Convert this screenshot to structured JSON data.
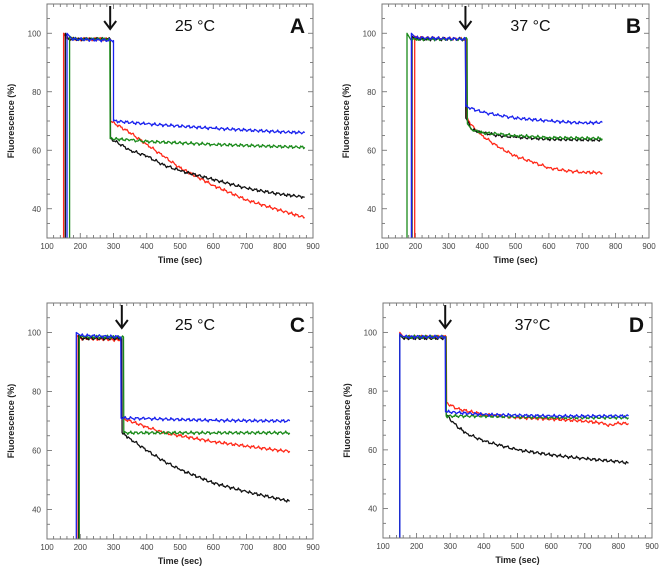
{
  "chart_data": [
    {
      "type": "line",
      "panel": "A",
      "annotation": "25 °C",
      "arrow_at": 290,
      "xlabel": "Time (sec)",
      "ylabel": "Fluorescence (%)",
      "xlim": [
        100,
        900
      ],
      "ylim": [
        30,
        110
      ],
      "xticks": [
        100,
        200,
        300,
        400,
        500,
        600,
        700,
        800,
        900
      ],
      "yticks": [
        40,
        60,
        80,
        100
      ],
      "series": [
        {
          "name": "red",
          "color": "#ff2a1a",
          "points": [
            [
              150,
              30
            ],
            [
              150,
              100
            ],
            [
              160,
              98
            ],
            [
              290,
              98
            ],
            [
              291,
              70
            ],
            [
              350,
              66
            ],
            [
              400,
              62
            ],
            [
              450,
              58
            ],
            [
              500,
              54
            ],
            [
              600,
              48
            ],
            [
              700,
              43
            ],
            [
              800,
              39.5
            ],
            [
              875,
              37
            ]
          ]
        },
        {
          "name": "black",
          "color": "#111111",
          "points": [
            [
              155,
              30
            ],
            [
              155,
              100
            ],
            [
              165,
              98
            ],
            [
              290,
              98
            ],
            [
              291,
              64
            ],
            [
              350,
              60
            ],
            [
              400,
              58
            ],
            [
              450,
              55
            ],
            [
              500,
              53
            ],
            [
              600,
              50
            ],
            [
              700,
              47
            ],
            [
              800,
              45
            ],
            [
              875,
              44
            ]
          ]
        },
        {
          "name": "green",
          "color": "#1a8a1a",
          "points": [
            [
              168,
              30
            ],
            [
              168,
              99
            ],
            [
              180,
              98
            ],
            [
              289,
              98
            ],
            [
              290,
              64
            ],
            [
              350,
              63.5
            ],
            [
              400,
              63
            ],
            [
              600,
              62
            ],
            [
              875,
              61
            ]
          ]
        },
        {
          "name": "blue",
          "color": "#1a22ee",
          "points": [
            [
              160,
              30
            ],
            [
              160,
              100
            ],
            [
              175,
              98
            ],
            [
              300,
              97.5
            ],
            [
              300,
              70
            ],
            [
              400,
              69
            ],
            [
              600,
              67.5
            ],
            [
              800,
              66.3
            ],
            [
              875,
              66
            ]
          ]
        }
      ]
    },
    {
      "type": "line",
      "panel": "B",
      "annotation": "37 °C",
      "arrow_at": 350,
      "xlabel": "Time (sec)",
      "ylabel": "Fluorescence (%)",
      "xlim": [
        100,
        900
      ],
      "ylim": [
        30,
        110
      ],
      "xticks": [
        100,
        200,
        300,
        400,
        500,
        600,
        700,
        800,
        900
      ],
      "yticks": [
        40,
        60,
        80,
        100
      ],
      "series": [
        {
          "name": "red",
          "color": "#ff2a1a",
          "points": [
            [
              198,
              30
            ],
            [
              198,
              99
            ],
            [
              210,
              98.5
            ],
            [
              352,
              98
            ],
            [
              353,
              71
            ],
            [
              380,
              67
            ],
            [
              400,
              65
            ],
            [
              450,
              61
            ],
            [
              500,
              58
            ],
            [
              550,
              56
            ],
            [
              600,
              54
            ],
            [
              650,
              53
            ],
            [
              700,
              52.5
            ],
            [
              760,
              52.3
            ]
          ]
        },
        {
          "name": "black",
          "color": "#111111",
          "points": [
            [
              190,
              30
            ],
            [
              190,
              99
            ],
            [
              200,
              98
            ],
            [
              350,
              98
            ],
            [
              351,
              71
            ],
            [
              370,
              67
            ],
            [
              400,
              66
            ],
            [
              450,
              65
            ],
            [
              500,
              64.5
            ],
            [
              600,
              63.8
            ],
            [
              760,
              63.5
            ]
          ]
        },
        {
          "name": "green",
          "color": "#1a8a1a",
          "points": [
            [
              175,
              30
            ],
            [
              175,
              100
            ],
            [
              185,
              98
            ],
            [
              355,
              98
            ],
            [
              356,
              69
            ],
            [
              370,
              67
            ],
            [
              400,
              66
            ],
            [
              450,
              65.5
            ],
            [
              500,
              65
            ],
            [
              600,
              64.3
            ],
            [
              760,
              64
            ]
          ]
        },
        {
          "name": "blue",
          "color": "#1a22ee",
          "points": [
            [
              188,
              30
            ],
            [
              188,
              100
            ],
            [
              200,
              98.5
            ],
            [
              350,
              98
            ],
            [
              351,
              75
            ],
            [
              400,
              73
            ],
            [
              450,
              72
            ],
            [
              500,
              71
            ],
            [
              600,
              70
            ],
            [
              700,
              69.3
            ],
            [
              760,
              69.5
            ]
          ]
        }
      ]
    },
    {
      "type": "line",
      "panel": "C",
      "annotation": "25 °C",
      "arrow_at": 325,
      "xlabel": "Time (sec)",
      "ylabel": "Fluorescence (%)",
      "xlim": [
        100,
        900
      ],
      "ylim": [
        30,
        110
      ],
      "xticks": [
        100,
        200,
        300,
        400,
        500,
        600,
        700,
        800,
        900
      ],
      "yticks": [
        40,
        60,
        80,
        100
      ],
      "series": [
        {
          "name": "red",
          "color": "#ff2a1a",
          "points": [
            [
              190,
              30
            ],
            [
              190,
              99
            ],
            [
              200,
              98
            ],
            [
              323,
              97.5
            ],
            [
              324,
              71
            ],
            [
              400,
              68
            ],
            [
              450,
              66
            ],
            [
              500,
              65
            ],
            [
              600,
              63
            ],
            [
              700,
              61.5
            ],
            [
              800,
              60
            ],
            [
              830,
              59.8
            ]
          ]
        },
        {
          "name": "black",
          "color": "#111111",
          "points": [
            [
              195,
              30
            ],
            [
              195,
              99
            ],
            [
              205,
              98
            ],
            [
              325,
              98
            ],
            [
              326,
              66
            ],
            [
              350,
              64
            ],
            [
              400,
              60
            ],
            [
              450,
              56.5
            ],
            [
              500,
              53.5
            ],
            [
              600,
              49
            ],
            [
              700,
              46
            ],
            [
              800,
              43.5
            ],
            [
              830,
              42.8
            ]
          ]
        },
        {
          "name": "green",
          "color": "#1a8a1a",
          "points": [
            [
              197,
              30
            ],
            [
              197,
              99
            ],
            [
              210,
              98.5
            ],
            [
              330,
              98.5
            ],
            [
              331,
              66
            ],
            [
              400,
              66
            ],
            [
              600,
              66
            ],
            [
              830,
              66
            ]
          ]
        },
        {
          "name": "blue",
          "color": "#1a22ee",
          "points": [
            [
              188,
              30
            ],
            [
              188,
              100
            ],
            [
              200,
              99
            ],
            [
              322,
              98.5
            ],
            [
              323,
              71
            ],
            [
              400,
              70.8
            ],
            [
              600,
              70.2
            ],
            [
              830,
              70
            ]
          ]
        }
      ]
    },
    {
      "type": "line",
      "panel": "D",
      "annotation": "37°C",
      "arrow_at": 285,
      "xlabel": "Time (sec)",
      "ylabel": "Fluorescence (%)",
      "xlim": [
        100,
        900
      ],
      "ylim": [
        30,
        110
      ],
      "xticks": [
        100,
        200,
        300,
        400,
        500,
        600,
        700,
        800,
        900
      ],
      "yticks": [
        40,
        60,
        80,
        100
      ],
      "series": [
        {
          "name": "red",
          "color": "#ff2a1a",
          "points": [
            [
              150,
              30
            ],
            [
              150,
              100
            ],
            [
              160,
              98.5
            ],
            [
              288,
              98.5
            ],
            [
              289,
              76
            ],
            [
              320,
              74
            ],
            [
              400,
              72
            ],
            [
              500,
              71
            ],
            [
              600,
              70.5
            ],
            [
              700,
              69.8
            ],
            [
              760,
              69
            ],
            [
              770,
              68
            ],
            [
              790,
              69
            ],
            [
              830,
              69
            ]
          ]
        },
        {
          "name": "black",
          "color": "#111111",
          "points": [
            [
              150,
              30
            ],
            [
              150,
              99
            ],
            [
              160,
              98
            ],
            [
              287,
              98
            ],
            [
              288,
              72
            ],
            [
              320,
              68
            ],
            [
              350,
              65.5
            ],
            [
              400,
              63
            ],
            [
              450,
              61.5
            ],
            [
              500,
              60
            ],
            [
              600,
              58.3
            ],
            [
              700,
              57
            ],
            [
              800,
              56
            ],
            [
              830,
              55.5
            ]
          ]
        },
        {
          "name": "green",
          "color": "#1a8a1a",
          "points": [
            [
              150,
              30
            ],
            [
              150,
              99
            ],
            [
              160,
              98.5
            ],
            [
              287,
              98.5
            ],
            [
              288,
              71.5
            ],
            [
              400,
              71.5
            ],
            [
              600,
              71
            ],
            [
              830,
              71
            ]
          ]
        },
        {
          "name": "blue",
          "color": "#1a22ee",
          "points": [
            [
              150,
              30
            ],
            [
              150,
              99.5
            ],
            [
              160,
              98.5
            ],
            [
              285,
              98.5
            ],
            [
              286,
              73
            ],
            [
              400,
              72
            ],
            [
              600,
              71.5
            ],
            [
              830,
              71.5
            ]
          ]
        }
      ]
    }
  ]
}
